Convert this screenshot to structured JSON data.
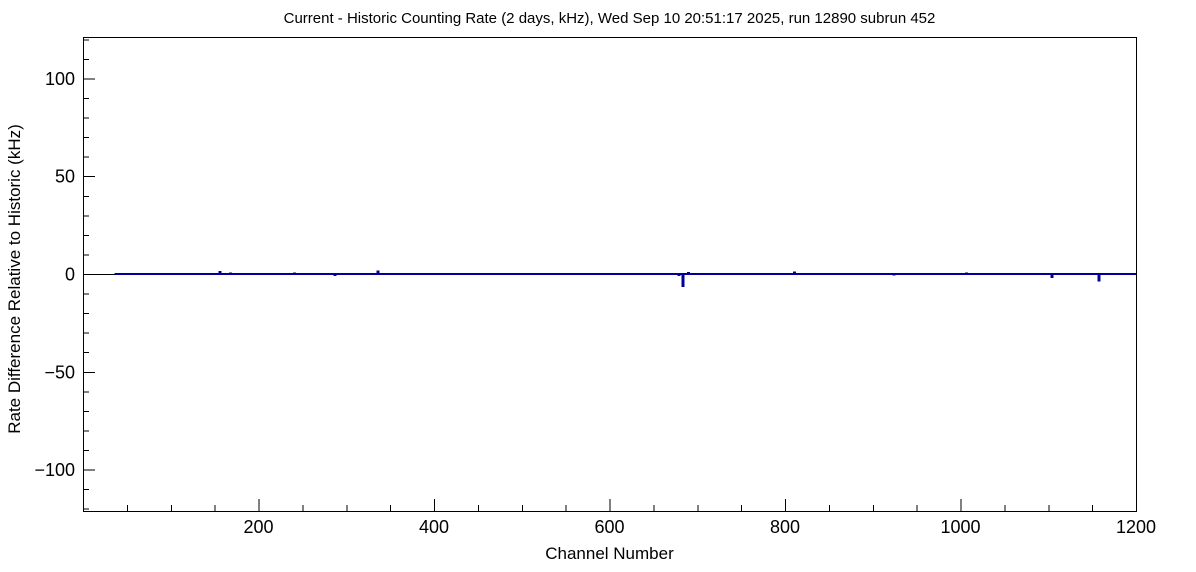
{
  "page": {
    "background_color": "#ffffff",
    "accent_color": "#000099"
  },
  "chart_data": {
    "type": "line",
    "title": "Current - Historic Counting Rate (2 days, kHz), Wed Sep 10 20:51:17 2025, run 12890 subrun 452",
    "xlabel": "Channel Number",
    "ylabel": "Rate Difference Relative to Historic (kHz)",
    "xlim": [
      0,
      1200
    ],
    "ylim": [
      -121.2,
      121.2
    ],
    "x_major_step": 200,
    "x_minor_step": 50,
    "y_major_step": 50,
    "y_minor_step": 10,
    "x_tick_labels": [
      "200",
      "400",
      "600",
      "800",
      "1000",
      "1200"
    ],
    "y_tick_labels": [
      "−100",
      "−50",
      "0",
      "50",
      "100"
    ],
    "grid": false,
    "legend": null,
    "line_color": "#000099",
    "axis_color": "#000000",
    "zero_reference_line": 0,
    "baseline_value": 0,
    "data_start_channel": 36,
    "data_end_channel": 1200,
    "spikes": [
      [
        51,
        0.6
      ],
      [
        75,
        0.4
      ],
      [
        110,
        -0.6
      ],
      [
        156,
        1.5
      ],
      [
        168,
        0.8
      ],
      [
        172,
        0.6
      ],
      [
        230,
        0.5
      ],
      [
        241,
        0.7
      ],
      [
        287,
        -1.0
      ],
      [
        325,
        0.6
      ],
      [
        336,
        1.8
      ],
      [
        346,
        0.5
      ],
      [
        360,
        0.4
      ],
      [
        545,
        0.5
      ],
      [
        577,
        -0.5
      ],
      [
        600,
        -0.6
      ],
      [
        625,
        0.6
      ],
      [
        650,
        0.5
      ],
      [
        667,
        -0.5
      ],
      [
        679,
        -1.0
      ],
      [
        684,
        -6.6
      ],
      [
        690,
        0.9
      ],
      [
        811,
        1.2
      ],
      [
        924,
        -0.8
      ],
      [
        1007,
        0.8
      ],
      [
        1087,
        0.4
      ],
      [
        1104,
        -2.0
      ],
      [
        1158,
        -3.9
      ]
    ]
  }
}
